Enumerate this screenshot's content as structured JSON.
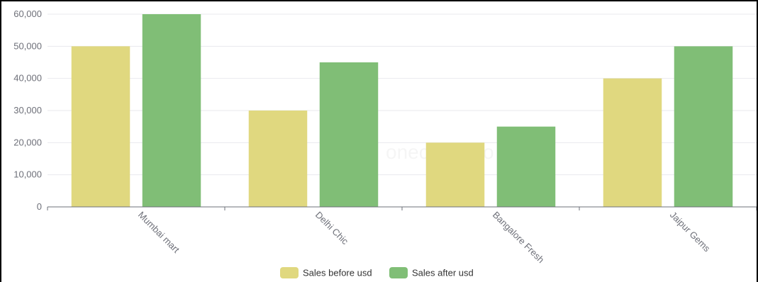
{
  "chart_data": {
    "type": "bar",
    "categories": [
      "Mumbai mart",
      "Delhi Chic",
      "Bangalore Fresh",
      "Jaipur Gems"
    ],
    "series": [
      {
        "name": "Sales before usd",
        "values": [
          50000,
          30000,
          20000,
          40000
        ],
        "color": "#e0d87f"
      },
      {
        "name": "Sales after usd",
        "values": [
          60000,
          45000,
          25000,
          50000
        ],
        "color": "#80be76"
      }
    ],
    "ylim": [
      0,
      60000
    ],
    "yticks": [
      0,
      10000,
      20000,
      30000,
      40000,
      50000,
      60000
    ],
    "ytick_labels": [
      "0",
      "10,000",
      "20,000",
      "30,000",
      "40,000",
      "50,000",
      "60,000"
    ],
    "grid": true,
    "legend_position": "bottom-center",
    "watermark": "onecharts.io"
  }
}
